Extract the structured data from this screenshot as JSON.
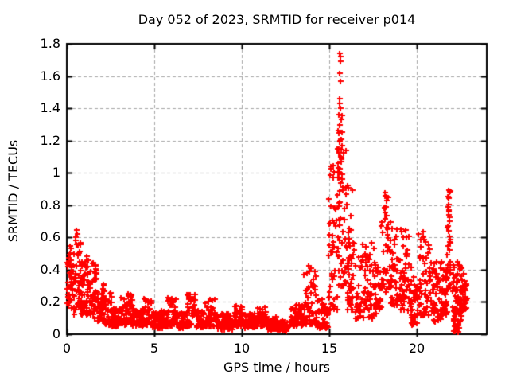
{
  "chart_data": {
    "type": "scatter",
    "title": "Day 052 of 2023, SRMTID for receiver p014",
    "xlabel": "GPS time / hours",
    "ylabel": "SRMTID / TECUs",
    "xlim": [
      0,
      24
    ],
    "ylim": [
      0,
      1.8
    ],
    "xticks": [
      0,
      5,
      10,
      15,
      20
    ],
    "xtick_labels": [
      "0",
      "5",
      "10",
      "15",
      "20"
    ],
    "yticks": [
      0,
      0.2,
      0.4,
      0.6,
      0.8,
      1,
      1.2,
      1.4,
      1.6,
      1.8
    ],
    "ytick_labels": [
      "0",
      "0.2",
      "0.4",
      "0.6",
      "0.8",
      "1",
      "1.2",
      "1.4",
      "1.6",
      "1.8"
    ],
    "grid": true,
    "legend": "none",
    "marker": "plus",
    "marker_color": "#ff0000",
    "grid_color": "#a6a6a6",
    "border_color": "#000000",
    "background": "#ffffff",
    "segment_format": [
      "x_start_hours",
      "x_end_hours",
      "y_min_TECUs",
      "y_max_TECUs",
      "point_count",
      "bottom_weight_exponent"
    ],
    "density_segments": [
      [
        0.0,
        0.3,
        0.15,
        0.56,
        38,
        1.2
      ],
      [
        0.3,
        0.9,
        0.12,
        0.645,
        72,
        1.3
      ],
      [
        0.9,
        1.35,
        0.12,
        0.5,
        48,
        1.4
      ],
      [
        1.35,
        1.75,
        0.1,
        0.46,
        44,
        1.4
      ],
      [
        1.75,
        2.15,
        0.08,
        0.32,
        40,
        1.4
      ],
      [
        2.15,
        2.55,
        0.06,
        0.27,
        36,
        1.5
      ],
      [
        2.55,
        3.05,
        0.05,
        0.18,
        40,
        1.4
      ],
      [
        3.05,
        3.75,
        0.06,
        0.26,
        52,
        1.6
      ],
      [
        3.75,
        4.35,
        0.05,
        0.16,
        46,
        1.3
      ],
      [
        4.35,
        4.85,
        0.06,
        0.23,
        40,
        1.5
      ],
      [
        4.85,
        5.75,
        0.04,
        0.15,
        66,
        1.3
      ],
      [
        5.75,
        6.25,
        0.05,
        0.23,
        40,
        1.5
      ],
      [
        6.25,
        6.65,
        0.04,
        0.14,
        34,
        1.3
      ],
      [
        6.65,
        7.35,
        0.05,
        0.25,
        50,
        1.5
      ],
      [
        7.35,
        7.85,
        0.04,
        0.15,
        40,
        1.3
      ],
      [
        7.85,
        8.6,
        0.05,
        0.22,
        55,
        1.5
      ],
      [
        8.6,
        9.6,
        0.03,
        0.13,
        70,
        1.3
      ],
      [
        9.6,
        10.1,
        0.05,
        0.18,
        40,
        1.5
      ],
      [
        10.1,
        10.9,
        0.04,
        0.13,
        55,
        1.3
      ],
      [
        10.9,
        11.45,
        0.05,
        0.17,
        40,
        1.5
      ],
      [
        11.45,
        12.1,
        0.03,
        0.11,
        45,
        1.3
      ],
      [
        12.1,
        12.8,
        0.02,
        0.09,
        42,
        1.3
      ],
      [
        12.8,
        13.5,
        0.05,
        0.19,
        50,
        1.4
      ],
      [
        13.5,
        14.25,
        0.06,
        0.44,
        58,
        1.8
      ],
      [
        14.25,
        14.95,
        0.04,
        0.22,
        50,
        1.5
      ],
      [
        14.95,
        15.45,
        0.15,
        1.05,
        46,
        1.7
      ],
      [
        15.45,
        15.95,
        0.3,
        1.36,
        60,
        1.5
      ],
      [
        15.95,
        16.35,
        0.15,
        0.95,
        44,
        1.7
      ],
      [
        16.35,
        17.6,
        0.1,
        0.58,
        84,
        1.4
      ],
      [
        17.6,
        17.95,
        0.12,
        0.45,
        28,
        1.3
      ],
      [
        17.95,
        18.45,
        0.25,
        0.88,
        38,
        1.6
      ],
      [
        18.45,
        19.05,
        0.18,
        0.7,
        44,
        1.5
      ],
      [
        19.05,
        19.55,
        0.15,
        0.66,
        44,
        1.5
      ],
      [
        19.55,
        20.05,
        0.06,
        0.42,
        40,
        1.4
      ],
      [
        20.05,
        20.75,
        0.12,
        0.64,
        54,
        1.5
      ],
      [
        20.75,
        21.45,
        0.08,
        0.45,
        54,
        1.4
      ],
      [
        21.45,
        21.72,
        0.12,
        0.42,
        28,
        1.3
      ],
      [
        21.72,
        21.98,
        0.28,
        0.9,
        30,
        1.5
      ],
      [
        21.98,
        22.55,
        0.08,
        0.46,
        48,
        1.4
      ],
      [
        22.1,
        22.45,
        0.01,
        0.17,
        22,
        1.2
      ],
      [
        22.45,
        22.85,
        0.15,
        0.42,
        34,
        1.2
      ]
    ],
    "peak_points": [
      [
        15.6,
        1.74
      ],
      [
        15.63,
        1.72
      ],
      [
        15.615,
        1.69
      ],
      [
        15.58,
        1.62
      ],
      [
        15.62,
        1.57
      ],
      [
        15.57,
        1.46
      ],
      [
        15.6,
        1.43
      ],
      [
        15.64,
        1.4
      ],
      [
        15.55,
        1.36
      ],
      [
        15.66,
        1.33
      ],
      [
        15.59,
        1.295
      ],
      [
        15.56,
        1.25
      ],
      [
        15.68,
        1.21
      ],
      [
        15.53,
        1.15
      ],
      [
        15.62,
        1.1
      ],
      [
        15.7,
        1.07
      ],
      [
        15.5,
        1.03
      ],
      [
        15.72,
        0.99
      ],
      [
        15.48,
        0.97
      ],
      [
        21.82,
        0.895
      ],
      [
        21.84,
        0.845
      ],
      [
        21.8,
        0.805
      ],
      [
        21.83,
        0.76
      ],
      [
        21.86,
        0.7
      ],
      [
        21.81,
        0.64
      ],
      [
        18.2,
        0.86
      ],
      [
        18.25,
        0.83
      ],
      [
        18.17,
        0.79
      ],
      [
        0.55,
        0.645
      ],
      [
        0.58,
        0.62
      ],
      [
        0.52,
        0.6
      ]
    ]
  }
}
